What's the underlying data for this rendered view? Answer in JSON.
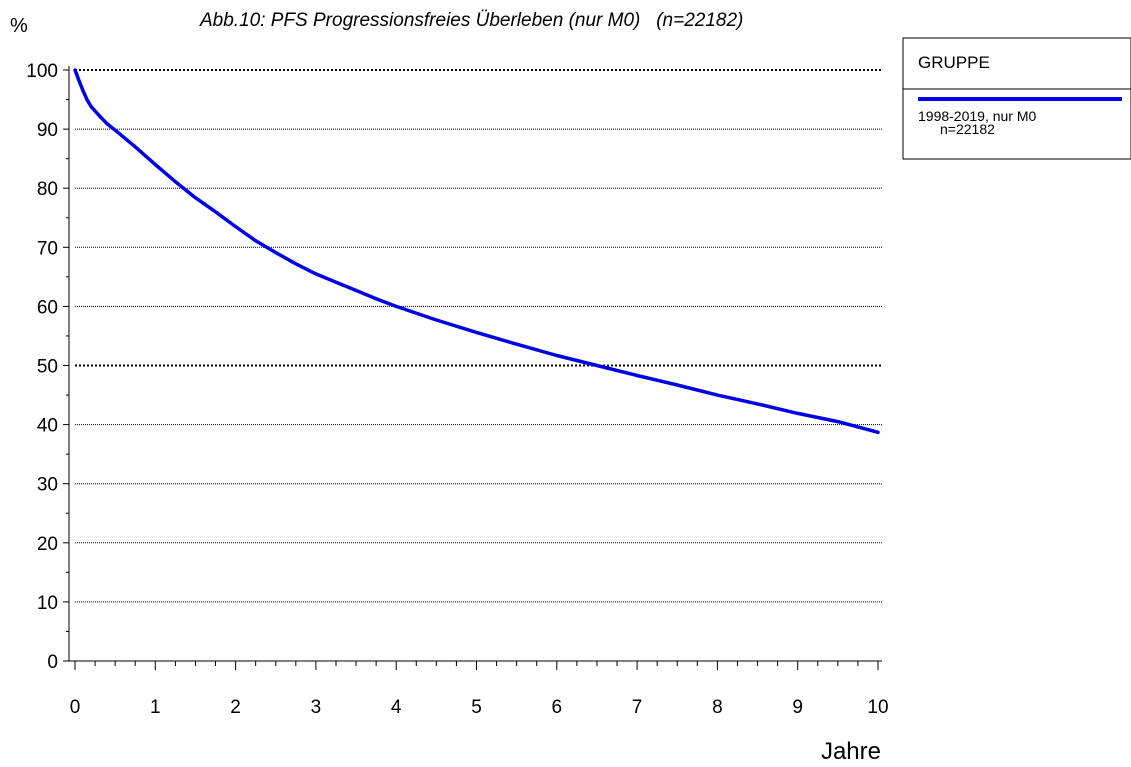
{
  "chart_data": {
    "type": "line",
    "title": "Abb.10: PFS Progressionsfreies Überleben (nur M0)   (n=22182)",
    "ylabel": "%",
    "xlabel": "Jahre",
    "xlim": [
      0,
      10
    ],
    "ylim": [
      0,
      100
    ],
    "x_ticks": [
      0,
      1,
      2,
      3,
      4,
      5,
      6,
      7,
      8,
      9,
      10
    ],
    "y_ticks": [
      0,
      10,
      20,
      30,
      40,
      50,
      60,
      70,
      80,
      90,
      100
    ],
    "grid": true,
    "emphasized_gridlines": [
      50,
      100
    ],
    "legend": {
      "position": "right",
      "title": "GRUPPE",
      "entries": [
        {
          "label_line1": "1998-2019, nur M0",
          "label_line2": "n=22182",
          "color": "#0000e6"
        }
      ]
    },
    "series": [
      {
        "name": "1998-2019, nur M0",
        "color": "#0000e6",
        "x": [
          0,
          0.05,
          0.1,
          0.15,
          0.2,
          0.3,
          0.4,
          0.5,
          0.6,
          0.75,
          1.0,
          1.25,
          1.5,
          1.75,
          2.0,
          2.25,
          2.5,
          2.75,
          3.0,
          3.25,
          3.5,
          3.75,
          4.0,
          4.5,
          5.0,
          5.5,
          6.0,
          6.5,
          7.0,
          7.5,
          8.0,
          8.5,
          9.0,
          9.5,
          10.0
        ],
        "y": [
          100,
          98.2,
          96.5,
          95.0,
          93.8,
          92.3,
          90.9,
          89.8,
          88.7,
          87.0,
          84.0,
          81.1,
          78.4,
          76.0,
          73.5,
          71.1,
          69.1,
          67.2,
          65.5,
          64.1,
          62.7,
          61.3,
          60.0,
          57.7,
          55.6,
          53.6,
          51.7,
          50.0,
          48.3,
          46.7,
          45.0,
          43.5,
          41.9,
          40.5,
          38.7
        ]
      }
    ]
  }
}
